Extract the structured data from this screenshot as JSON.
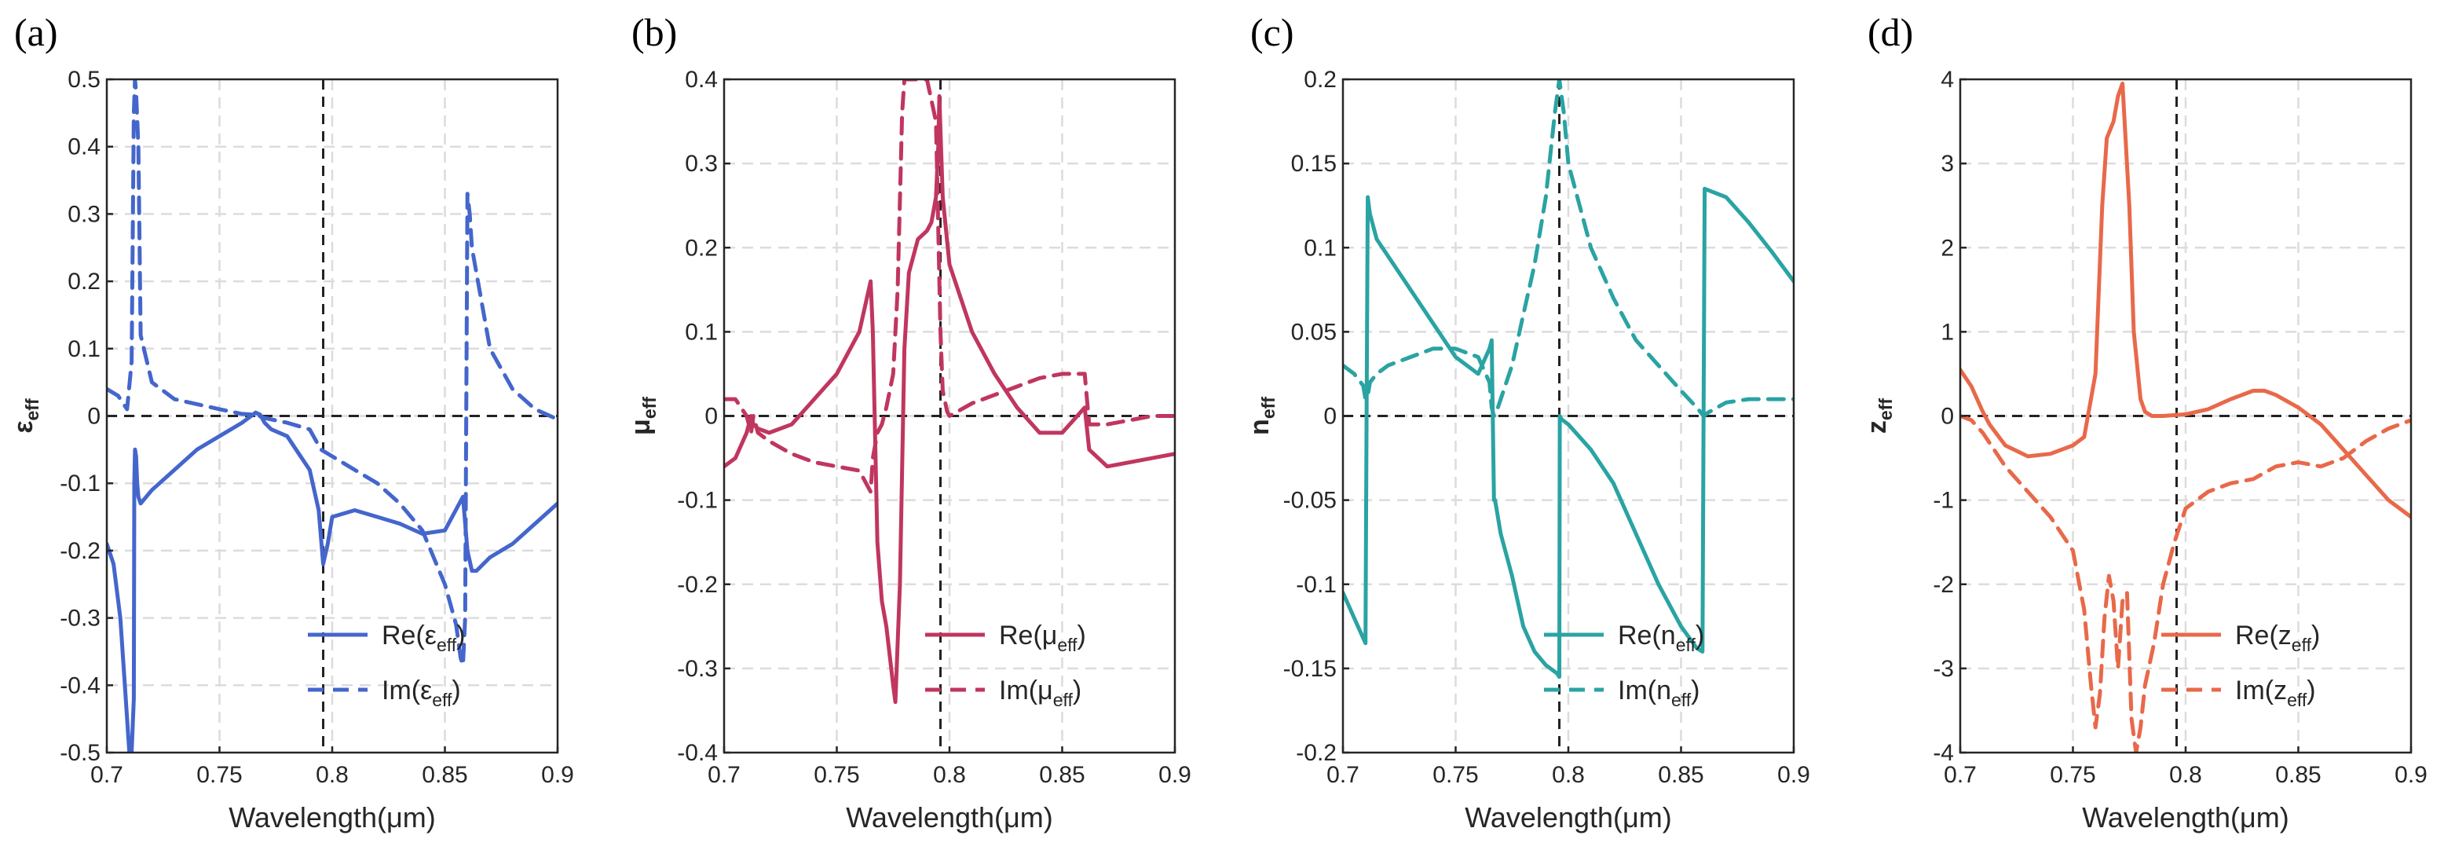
{
  "chart_data": [
    {
      "panel": "(a)",
      "type": "line",
      "xlabel": "Wavelength(μm)",
      "ylabel": "ε",
      "ylabel_sub": "eff",
      "xlim": [
        0.7,
        0.9
      ],
      "ylim": [
        -0.5,
        0.5
      ],
      "xticks": [
        0.7,
        0.75,
        0.8,
        0.85,
        0.9
      ],
      "xtick_labels": [
        "0.7",
        "0.75",
        "0.8",
        "0.85",
        "0.9"
      ],
      "yticks": [
        -0.5,
        -0.4,
        -0.3,
        -0.2,
        -0.1,
        0,
        0.1,
        0.2,
        0.3,
        0.4,
        0.5
      ],
      "ytick_labels": [
        "-0.5",
        "-0.4",
        "-0.3",
        "-0.2",
        "-0.1",
        "0",
        "0.1",
        "0.2",
        "0.3",
        "0.4",
        "0.5"
      ],
      "vline_x": 0.796,
      "color": "#4466cc",
      "series": [
        {
          "name": "Re(ε_eff)",
          "label_main": "Re(ε",
          "label_sub": "eff",
          "label_end": ")",
          "style": "solid",
          "x": [
            0.7,
            0.703,
            0.706,
            0.708,
            0.71,
            0.711,
            0.712,
            0.7122,
            0.7125,
            0.713,
            0.7135,
            0.714,
            0.715,
            0.72,
            0.73,
            0.74,
            0.75,
            0.76,
            0.766,
            0.768,
            0.77,
            0.773,
            0.78,
            0.79,
            0.794,
            0.796,
            0.798,
            0.8,
            0.81,
            0.82,
            0.83,
            0.84,
            0.85,
            0.858,
            0.86,
            0.862,
            0.864,
            0.87,
            0.88,
            0.89,
            0.9
          ],
          "y": [
            -0.19,
            -0.22,
            -0.3,
            -0.4,
            -0.5,
            -0.5,
            -0.42,
            -0.1,
            -0.05,
            -0.06,
            -0.1,
            -0.12,
            -0.13,
            -0.11,
            -0.08,
            -0.05,
            -0.03,
            -0.01,
            0.005,
            0.002,
            -0.01,
            -0.02,
            -0.03,
            -0.08,
            -0.14,
            -0.22,
            -0.19,
            -0.15,
            -0.14,
            -0.15,
            -0.16,
            -0.175,
            -0.17,
            -0.12,
            -0.2,
            -0.23,
            -0.23,
            -0.21,
            -0.19,
            -0.16,
            -0.13
          ]
        },
        {
          "name": "Im(ε_eff)",
          "label_main": "Im(ε",
          "label_sub": "eff",
          "label_end": ")",
          "style": "dashed",
          "x": [
            0.7,
            0.705,
            0.709,
            0.711,
            0.712,
            0.7125,
            0.713,
            0.714,
            0.715,
            0.72,
            0.73,
            0.75,
            0.76,
            0.766,
            0.77,
            0.78,
            0.79,
            0.795,
            0.8,
            0.81,
            0.82,
            0.83,
            0.84,
            0.85,
            0.855,
            0.857,
            0.858,
            0.859,
            0.86,
            0.861,
            0.862,
            0.87,
            0.88,
            0.89,
            0.9
          ],
          "y": [
            0.04,
            0.03,
            0.01,
            0.08,
            0.45,
            0.5,
            0.48,
            0.4,
            0.12,
            0.05,
            0.025,
            0.01,
            0.003,
            0.002,
            -0.003,
            -0.01,
            -0.02,
            -0.05,
            -0.06,
            -0.08,
            -0.1,
            -0.13,
            -0.17,
            -0.25,
            -0.31,
            -0.36,
            -0.37,
            -0.3,
            0.33,
            0.3,
            0.25,
            0.1,
            0.04,
            0.01,
            -0.005
          ]
        }
      ]
    },
    {
      "panel": "(b)",
      "type": "line",
      "xlabel": "Wavelength(μm)",
      "ylabel": "μ",
      "ylabel_sub": "eff",
      "xlim": [
        0.7,
        0.9
      ],
      "ylim": [
        -0.4,
        0.4
      ],
      "xticks": [
        0.7,
        0.75,
        0.8,
        0.85,
        0.9
      ],
      "xtick_labels": [
        "0.7",
        "0.75",
        "0.8",
        "0.85",
        "0.9"
      ],
      "yticks": [
        -0.4,
        -0.3,
        -0.2,
        -0.1,
        0,
        0.1,
        0.2,
        0.3,
        0.4
      ],
      "ytick_labels": [
        "-0.4",
        "-0.3",
        "-0.2",
        "-0.1",
        "0",
        "0.1",
        "0.2",
        "0.3",
        "0.4"
      ],
      "vline_x": 0.796,
      "color": "#c0365f",
      "series": [
        {
          "name": "Re(μ_eff)",
          "label_main": "Re(μ",
          "label_sub": "eff",
          "label_end": ")",
          "style": "solid",
          "x": [
            0.7,
            0.705,
            0.71,
            0.712,
            0.713,
            0.715,
            0.72,
            0.73,
            0.74,
            0.75,
            0.76,
            0.765,
            0.766,
            0.768,
            0.77,
            0.772,
            0.775,
            0.776,
            0.778,
            0.78,
            0.782,
            0.786,
            0.79,
            0.792,
            0.794,
            0.795,
            0.7955,
            0.796,
            0.797,
            0.8,
            0.81,
            0.82,
            0.83,
            0.84,
            0.85,
            0.86,
            0.862,
            0.87,
            0.88,
            0.89,
            0.9
          ],
          "y": [
            -0.06,
            -0.05,
            -0.02,
            0.0,
            -0.01,
            -0.015,
            -0.02,
            -0.01,
            0.02,
            0.05,
            0.1,
            0.16,
            0.1,
            -0.15,
            -0.22,
            -0.25,
            -0.32,
            -0.34,
            -0.2,
            0.08,
            0.17,
            0.21,
            0.22,
            0.23,
            0.26,
            0.32,
            0.38,
            0.34,
            0.26,
            0.18,
            0.1,
            0.05,
            0.01,
            -0.02,
            -0.02,
            0.01,
            -0.04,
            -0.06,
            -0.055,
            -0.05,
            -0.045
          ]
        },
        {
          "name": "Im(μ_eff)",
          "label_main": "Im(μ",
          "label_sub": "eff",
          "label_end": ")",
          "style": "dashed",
          "x": [
            0.7,
            0.705,
            0.71,
            0.712,
            0.713,
            0.715,
            0.72,
            0.73,
            0.74,
            0.75,
            0.76,
            0.765,
            0.766,
            0.768,
            0.77,
            0.772,
            0.775,
            0.777,
            0.779,
            0.78,
            0.782,
            0.786,
            0.79,
            0.794,
            0.796,
            0.797,
            0.799,
            0.8,
            0.81,
            0.82,
            0.83,
            0.84,
            0.85,
            0.86,
            0.862,
            0.87,
            0.88,
            0.89,
            0.9
          ],
          "y": [
            0.02,
            0.02,
            0.0,
            -0.02,
            0.0,
            -0.02,
            -0.03,
            -0.045,
            -0.055,
            -0.06,
            -0.065,
            -0.09,
            -0.05,
            -0.02,
            -0.01,
            0.01,
            0.05,
            0.15,
            0.36,
            0.4,
            0.4,
            0.4,
            0.4,
            0.35,
            0.1,
            0.03,
            0.005,
            0.0,
            0.015,
            0.025,
            0.035,
            0.045,
            0.05,
            0.05,
            -0.01,
            -0.01,
            -0.005,
            0.0,
            0.0
          ]
        }
      ]
    },
    {
      "panel": "(c)",
      "type": "line",
      "xlabel": "Wavelength(μm)",
      "ylabel": "n",
      "ylabel_sub": "eff",
      "xlim": [
        0.7,
        0.9
      ],
      "ylim": [
        -0.2,
        0.2
      ],
      "xticks": [
        0.7,
        0.75,
        0.8,
        0.85,
        0.9
      ],
      "xtick_labels": [
        "0.7",
        "0.75",
        "0.8",
        "0.85",
        "0.9"
      ],
      "yticks": [
        -0.2,
        -0.15,
        -0.1,
        -0.05,
        0,
        0.05,
        0.1,
        0.15,
        0.2
      ],
      "ytick_labels": [
        "-0.2",
        "-0.15",
        "-0.1",
        "-0.05",
        "0",
        "0.05",
        "0.1",
        "0.15",
        "0.2"
      ],
      "vline_x": 0.796,
      "color": "#2aa3a3",
      "series": [
        {
          "name": "Re(n_eff)",
          "label_main": "Re(n",
          "label_sub": "eff",
          "label_end": ")",
          "style": "solid",
          "x": [
            0.7,
            0.705,
            0.71,
            0.7105,
            0.711,
            0.712,
            0.715,
            0.72,
            0.73,
            0.74,
            0.75,
            0.76,
            0.765,
            0.766,
            0.767,
            0.7675,
            0.77,
            0.775,
            0.78,
            0.785,
            0.79,
            0.795,
            0.796,
            0.7962,
            0.797,
            0.8,
            0.81,
            0.82,
            0.83,
            0.84,
            0.85,
            0.857,
            0.8595,
            0.86,
            0.8605,
            0.87,
            0.88,
            0.89,
            0.9
          ],
          "y": [
            -0.105,
            -0.12,
            -0.135,
            0.0,
            0.13,
            0.12,
            0.105,
            0.095,
            0.075,
            0.055,
            0.035,
            0.025,
            0.04,
            0.045,
            -0.05,
            -0.05,
            -0.07,
            -0.095,
            -0.125,
            -0.14,
            -0.148,
            -0.153,
            -0.155,
            0.0,
            -0.002,
            -0.005,
            -0.02,
            -0.04,
            -0.07,
            -0.1,
            -0.125,
            -0.138,
            -0.14,
            0.0,
            0.135,
            0.13,
            0.115,
            0.098,
            0.08
          ]
        },
        {
          "name": "Im(n_eff)",
          "label_main": "Im(n",
          "label_sub": "eff",
          "label_end": ")",
          "style": "dashed",
          "x": [
            0.7,
            0.705,
            0.709,
            0.71,
            0.711,
            0.712,
            0.715,
            0.72,
            0.73,
            0.74,
            0.75,
            0.76,
            0.765,
            0.766,
            0.767,
            0.768,
            0.77,
            0.775,
            0.78,
            0.785,
            0.79,
            0.794,
            0.796,
            0.798,
            0.8,
            0.81,
            0.82,
            0.83,
            0.84,
            0.85,
            0.857,
            0.86,
            0.862,
            0.87,
            0.88,
            0.89,
            0.9
          ],
          "y": [
            0.03,
            0.025,
            0.018,
            0.01,
            0.012,
            0.02,
            0.025,
            0.03,
            0.035,
            0.04,
            0.04,
            0.035,
            0.02,
            0.005,
            0.0,
            0.002,
            0.01,
            0.03,
            0.06,
            0.09,
            0.13,
            0.18,
            0.2,
            0.18,
            0.15,
            0.1,
            0.07,
            0.045,
            0.03,
            0.015,
            0.005,
            0.0,
            0.002,
            0.008,
            0.01,
            0.01,
            0.01
          ]
        }
      ]
    },
    {
      "panel": "(d)",
      "type": "line",
      "xlabel": "Wavelength(μm)",
      "ylabel": "z",
      "ylabel_sub": "eff",
      "xlim": [
        0.7,
        0.9
      ],
      "ylim": [
        -4,
        4
      ],
      "xticks": [
        0.7,
        0.75,
        0.8,
        0.85,
        0.9
      ],
      "xtick_labels": [
        "0.7",
        "0.75",
        "0.8",
        "0.85",
        "0.9"
      ],
      "yticks": [
        -4,
        -3,
        -2,
        -1,
        0,
        1,
        2,
        3,
        4
      ],
      "ytick_labels": [
        "-4",
        "-3",
        "-2",
        "-1",
        "0",
        "1",
        "2",
        "3",
        "4"
      ],
      "vline_x": 0.796,
      "color": "#e8694a",
      "series": [
        {
          "name": "Re(z_eff)",
          "label_main": "Re(z",
          "label_sub": "eff",
          "label_end": ")",
          "style": "solid",
          "x": [
            0.7,
            0.705,
            0.71,
            0.713,
            0.72,
            0.73,
            0.74,
            0.75,
            0.755,
            0.76,
            0.763,
            0.765,
            0.768,
            0.77,
            0.772,
            0.775,
            0.777,
            0.78,
            0.782,
            0.785,
            0.79,
            0.8,
            0.81,
            0.82,
            0.83,
            0.835,
            0.84,
            0.85,
            0.86,
            0.87,
            0.88,
            0.89,
            0.9
          ],
          "y": [
            0.55,
            0.35,
            0.05,
            -0.1,
            -0.35,
            -0.48,
            -0.45,
            -0.35,
            -0.25,
            0.5,
            2.5,
            3.3,
            3.5,
            3.8,
            3.95,
            2.5,
            1.0,
            0.2,
            0.05,
            0.0,
            0.0,
            0.02,
            0.08,
            0.2,
            0.3,
            0.3,
            0.25,
            0.1,
            -0.1,
            -0.4,
            -0.7,
            -1.0,
            -1.2
          ]
        },
        {
          "name": "Im(z_eff)",
          "label_main": "Im(z",
          "label_sub": "eff",
          "label_end": ")",
          "style": "dashed",
          "x": [
            0.7,
            0.705,
            0.71,
            0.715,
            0.72,
            0.73,
            0.74,
            0.75,
            0.755,
            0.758,
            0.76,
            0.762,
            0.764,
            0.766,
            0.768,
            0.77,
            0.772,
            0.774,
            0.776,
            0.778,
            0.78,
            0.782,
            0.786,
            0.79,
            0.795,
            0.8,
            0.81,
            0.82,
            0.83,
            0.84,
            0.85,
            0.86,
            0.87,
            0.88,
            0.89,
            0.9
          ],
          "y": [
            0.0,
            -0.05,
            -0.2,
            -0.4,
            -0.6,
            -0.9,
            -1.2,
            -1.6,
            -2.3,
            -3.2,
            -3.7,
            -3.3,
            -2.4,
            -1.9,
            -2.2,
            -3.0,
            -2.2,
            -2.1,
            -3.6,
            -4.0,
            -3.7,
            -3.2,
            -2.7,
            -2.0,
            -1.5,
            -1.1,
            -0.9,
            -0.8,
            -0.75,
            -0.6,
            -0.55,
            -0.6,
            -0.5,
            -0.3,
            -0.15,
            -0.05
          ]
        }
      ]
    }
  ]
}
